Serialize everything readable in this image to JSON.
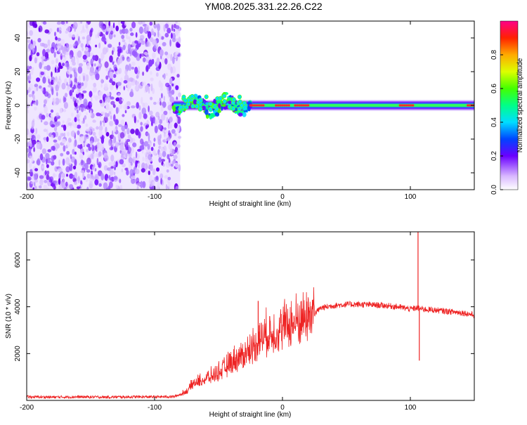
{
  "chart_data": [
    {
      "type": "heatmap",
      "title": "YM08.2025.331.22.26.C22",
      "xlabel": "Height of straight line (km)",
      "ylabel": "Frequency (Hz)",
      "xlim": [
        -200,
        150
      ],
      "ylim": [
        -50,
        50
      ],
      "xticks": [
        -200,
        -100,
        0,
        100
      ],
      "yticks": [
        -40,
        -20,
        0,
        20,
        40
      ],
      "colorbar": {
        "label": "Normalized spectral amplitude",
        "range": [
          0,
          1
        ],
        "ticks": [
          0.0,
          0.2,
          0.4,
          0.6,
          0.8
        ]
      },
      "noise_region_x": [
        -200,
        -80
      ],
      "ridge": {
        "description": "narrow spectral line near 0 Hz",
        "start_x": -85,
        "peak_x": [
          -20,
          0,
          15,
          97,
          150
        ],
        "frequency_hz": 0
      }
    },
    {
      "type": "line",
      "title": "",
      "xlabel": "Height of straight line (km)",
      "ylabel": "SNR (10 * v/v)",
      "xlim": [
        -200,
        150
      ],
      "ylim": [
        0,
        7200
      ],
      "xticks": [
        -200,
        -100,
        0,
        100
      ],
      "yticks": [
        2000,
        4000,
        6000
      ],
      "series": [
        {
          "name": "SNR",
          "color": "#ee2222",
          "points": [
            [
              -200,
              150
            ],
            [
              -180,
              140
            ],
            [
              -160,
              150
            ],
            [
              -140,
              140
            ],
            [
              -120,
              150
            ],
            [
              -100,
              150
            ],
            [
              -85,
              160
            ],
            [
              -75,
              350
            ],
            [
              -70,
              650
            ],
            [
              -65,
              750
            ],
            [
              -60,
              850
            ],
            [
              -55,
              950
            ],
            [
              -50,
              1100
            ],
            [
              -45,
              1250
            ],
            [
              -40,
              1500
            ],
            [
              -35,
              1650
            ],
            [
              -30,
              1800
            ],
            [
              -25,
              2000
            ],
            [
              -20,
              2300
            ],
            [
              -15,
              2500
            ],
            [
              -10,
              2600
            ],
            [
              -5,
              2700
            ],
            [
              0,
              2850
            ],
            [
              5,
              2950
            ],
            [
              10,
              3050
            ],
            [
              15,
              3150
            ],
            [
              20,
              3300
            ],
            [
              25,
              3700
            ],
            [
              30,
              3950
            ],
            [
              35,
              4000
            ],
            [
              40,
              4050
            ],
            [
              50,
              4100
            ],
            [
              60,
              4100
            ],
            [
              70,
              4080
            ],
            [
              80,
              4050
            ],
            [
              90,
              4000
            ],
            [
              95,
              3950
            ],
            [
              100,
              3900
            ],
            [
              105,
              3950
            ],
            [
              110,
              3900
            ],
            [
              120,
              3850
            ],
            [
              130,
              3800
            ],
            [
              140,
              3750
            ],
            [
              150,
              3650
            ]
          ],
          "spikes": [
            [
              -19,
              4250
            ],
            [
              -10,
              3600
            ],
            [
              106,
              7200
            ],
            [
              107,
              1700
            ]
          ]
        }
      ]
    }
  ]
}
